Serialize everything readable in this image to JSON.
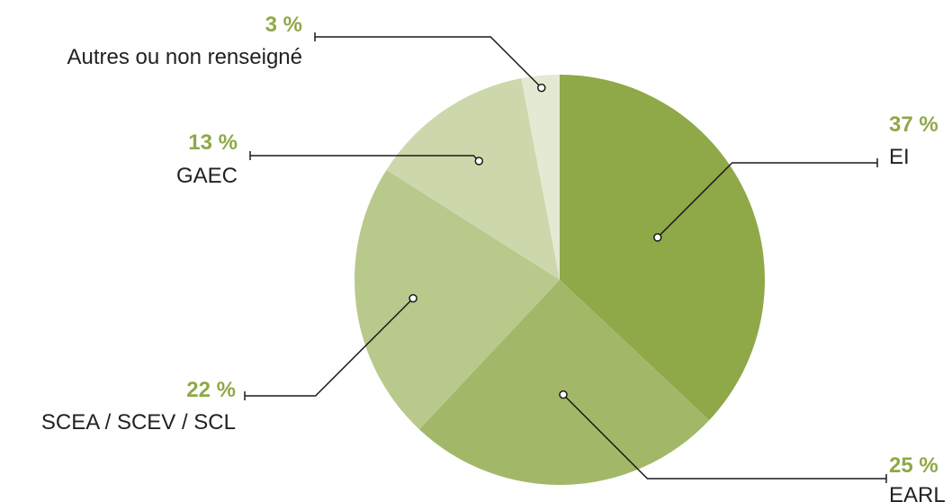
{
  "chart_data": {
    "type": "pie",
    "unit": "%",
    "categories": [
      "EI",
      "EARL",
      "SCEA / SCEV / SCL",
      "GAEC",
      "Autres ou non renseigné"
    ],
    "values": [
      37,
      25,
      22,
      13,
      3
    ],
    "labels": [
      "37 %",
      "25 %",
      "22 %",
      "13 %",
      "3 %"
    ],
    "colors": [
      "#8fa848",
      "#a2b868",
      "#b8c98b",
      "#ccd8ab",
      "#e3e9d2"
    ],
    "label_color": "#8fa848",
    "start": "top",
    "direction": "clockwise"
  }
}
